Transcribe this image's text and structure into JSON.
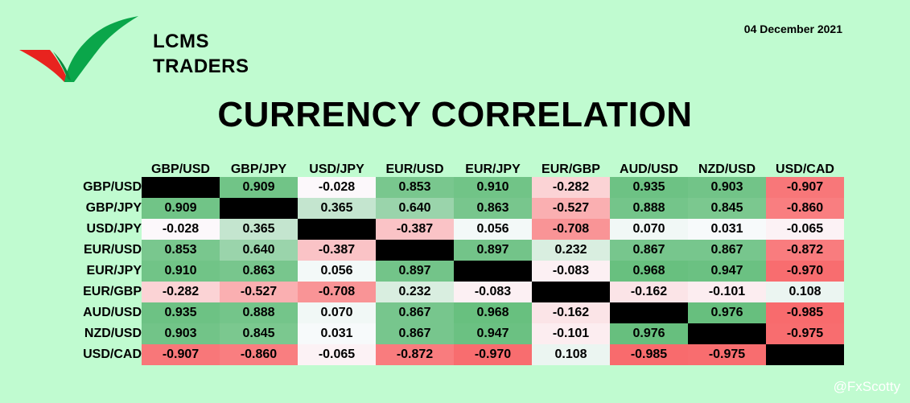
{
  "brand": {
    "line1": "LCMS",
    "line2": "TRADERS",
    "green": "#0aa64a",
    "red": "#e8231f"
  },
  "date": "04 December 2021",
  "title": "CURRENCY CORRELATION",
  "watermark": "@FxScotty",
  "chart_data": {
    "type": "heatmap",
    "title": "CURRENCY CORRELATION",
    "columns": [
      "GBP/USD",
      "GBP/JPY",
      "USD/JPY",
      "EUR/USD",
      "EUR/JPY",
      "EUR/GBP",
      "AUD/USD",
      "NZD/USD",
      "USD/CAD"
    ],
    "rows": [
      "GBP/USD",
      "GBP/JPY",
      "USD/JPY",
      "EUR/USD",
      "EUR/JPY",
      "EUR/GBP",
      "AUD/USD",
      "NZD/USD",
      "USD/CAD"
    ],
    "values": [
      [
        null,
        0.909,
        -0.028,
        0.853,
        0.91,
        -0.282,
        0.935,
        0.903,
        -0.907
      ],
      [
        0.909,
        null,
        0.365,
        0.64,
        0.863,
        -0.527,
        0.888,
        0.845,
        -0.86
      ],
      [
        -0.028,
        0.365,
        null,
        -0.387,
        0.056,
        -0.708,
        0.07,
        0.031,
        -0.065
      ],
      [
        0.853,
        0.64,
        -0.387,
        null,
        0.897,
        0.232,
        0.867,
        0.867,
        -0.872
      ],
      [
        0.91,
        0.863,
        0.056,
        0.897,
        null,
        -0.083,
        0.968,
        0.947,
        -0.97
      ],
      [
        -0.282,
        -0.527,
        -0.708,
        0.232,
        -0.083,
        null,
        -0.162,
        -0.101,
        0.108
      ],
      [
        0.935,
        0.888,
        0.07,
        0.867,
        0.968,
        -0.162,
        null,
        0.976,
        -0.985
      ],
      [
        0.903,
        0.845,
        0.031,
        0.867,
        0.947,
        -0.101,
        0.976,
        null,
        -0.975
      ],
      [
        -0.907,
        -0.86,
        -0.065,
        -0.872,
        -0.97,
        0.108,
        -0.985,
        -0.975,
        null
      ]
    ],
    "value_range": [
      -1,
      1
    ],
    "colors": {
      "positive": "#63be7b",
      "negative": "#f8696b",
      "neutral": "#fcfcff",
      "diagonal": "#000000"
    }
  }
}
